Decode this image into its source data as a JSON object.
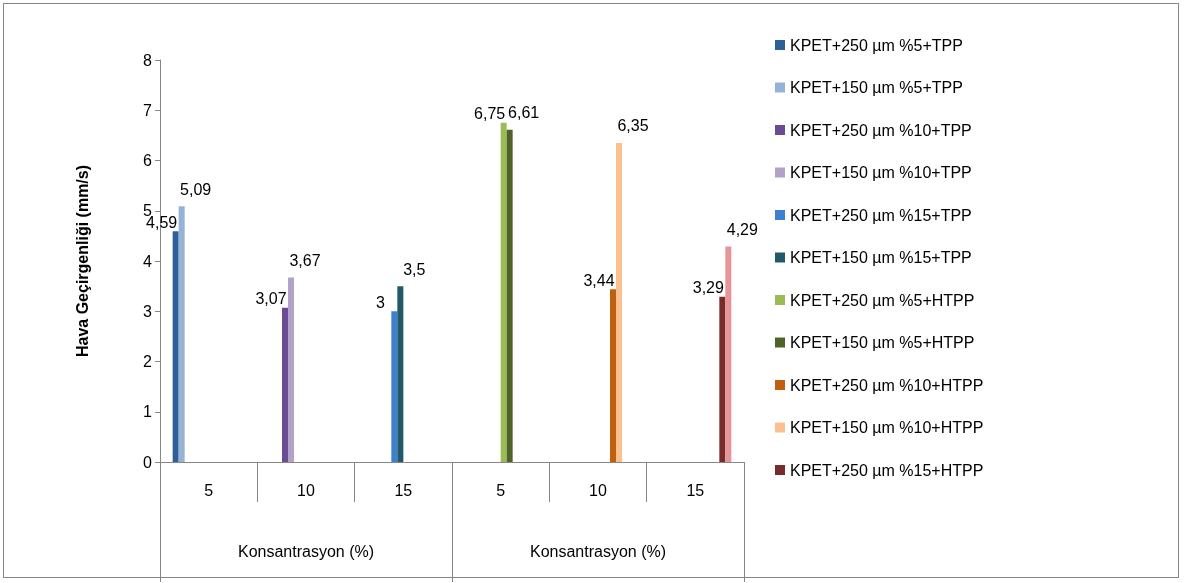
{
  "chart_data": {
    "type": "bar",
    "ylabel": "Hava Geçirgenliği (mm/s)",
    "categories": [
      "5",
      "10",
      "15",
      "5",
      "10",
      "15"
    ],
    "annotations": [
      "Konsantrasyon (%)",
      "Konsantrasyon (%)"
    ],
    "ylim": [
      0,
      8
    ],
    "yticks": [
      0,
      1,
      2,
      3,
      4,
      5,
      6,
      7,
      8
    ],
    "grid": false,
    "legend": "right",
    "series": [
      {
        "name": "KPET+250 µm %5+TPP",
        "color": "#2f5f98",
        "values": [
          4.59,
          null,
          null,
          null,
          null,
          null
        ],
        "value_labels": [
          "4,59",
          null,
          null,
          null,
          null,
          null
        ]
      },
      {
        "name": "KPET+150 µm %5+TPP",
        "color": "#95b3d7",
        "values": [
          5.09,
          null,
          null,
          null,
          null,
          null
        ],
        "value_labels": [
          "5,09",
          null,
          null,
          null,
          null,
          null
        ]
      },
      {
        "name": "KPET+250 µm %10+TPP",
        "color": "#6a4c93",
        "values": [
          null,
          3.07,
          null,
          null,
          null,
          null
        ],
        "value_labels": [
          null,
          "3,07",
          null,
          null,
          null,
          null
        ]
      },
      {
        "name": "KPET+150 µm %10+TPP",
        "color": "#b3a2c7",
        "values": [
          null,
          3.67,
          null,
          null,
          null,
          null
        ],
        "value_labels": [
          null,
          "3,67",
          null,
          null,
          null,
          null
        ]
      },
      {
        "name": "KPET+250 µm %15+TPP",
        "color": "#3d80d0",
        "values": [
          null,
          null,
          3,
          null,
          null,
          null
        ],
        "value_labels": [
          null,
          null,
          "3",
          null,
          null,
          null
        ]
      },
      {
        "name": "KPET+150 µm %15+TPP",
        "color": "#215968",
        "values": [
          null,
          null,
          3.5,
          null,
          null,
          null
        ],
        "value_labels": [
          null,
          null,
          "3,5",
          null,
          null,
          null
        ]
      },
      {
        "name": "KPET+250 µm %5+HTPP",
        "color": "#9bbb59",
        "values": [
          null,
          null,
          null,
          6.75,
          null,
          null
        ],
        "value_labels": [
          null,
          null,
          null,
          "6,75",
          null,
          null
        ]
      },
      {
        "name": "KPET+150 µm %5+HTPP",
        "color": "#4f6228",
        "values": [
          null,
          null,
          null,
          6.61,
          null,
          null
        ],
        "value_labels": [
          null,
          null,
          null,
          "6,61",
          null,
          null
        ]
      },
      {
        "name": "KPET+250 µm %10+HTPP",
        "color": "#c0600f",
        "values": [
          null,
          null,
          null,
          null,
          3.44,
          null
        ],
        "value_labels": [
          null,
          null,
          null,
          null,
          "3,44",
          null
        ]
      },
      {
        "name": "KPET+150 µm %10+HTPP",
        "color": "#fac090",
        "values": [
          null,
          null,
          null,
          null,
          6.35,
          null
        ],
        "value_labels": [
          null,
          null,
          null,
          null,
          "6,35",
          null
        ]
      },
      {
        "name": "KPET+250 µm %15+HTPP",
        "color": "#772c2a",
        "values": [
          null,
          null,
          null,
          null,
          null,
          3.29
        ],
        "value_labels": [
          null,
          null,
          null,
          null,
          null,
          "3,29"
        ]
      },
      {
        "color": "#e6959a",
        "values": [
          null,
          null,
          null,
          null,
          null,
          4.29
        ],
        "value_labels": [
          null,
          null,
          null,
          null,
          null,
          "4,29"
        ]
      }
    ]
  }
}
